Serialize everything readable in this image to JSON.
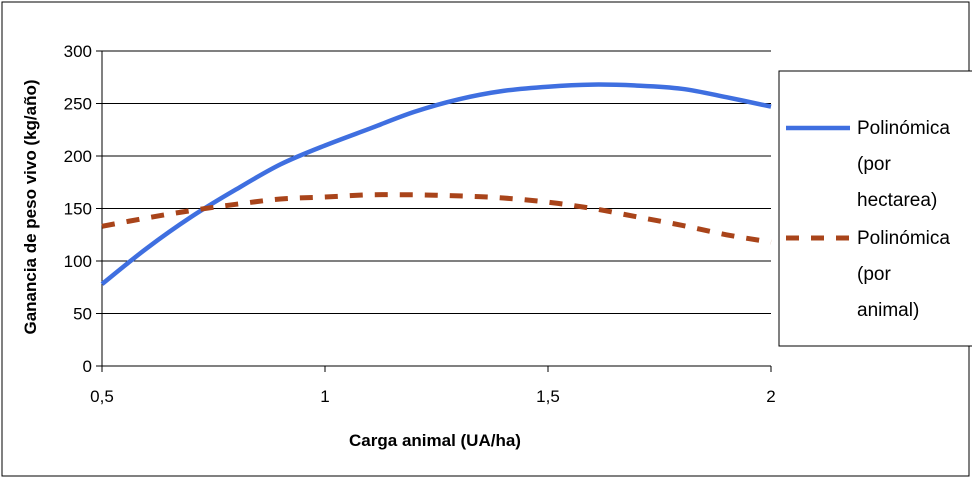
{
  "chart_data": {
    "type": "line",
    "xlabel": "Carga animal (UA/ha)",
    "ylabel": "Ganancia de peso vivo (kg/año)",
    "xlim": [
      0.5,
      2
    ],
    "ylim": [
      0,
      300
    ],
    "x_ticks": [
      "0,5",
      "1",
      "1,5",
      "2"
    ],
    "y_ticks": [
      "0",
      "50",
      "100",
      "150",
      "200",
      "250",
      "300"
    ],
    "grid": "horizontal",
    "legend_position": "right",
    "series": [
      {
        "name": "Polinómica (por hectarea)",
        "legend_lines": [
          "Polinómica",
          "(por",
          "hectarea)"
        ],
        "color": "#3f6fe0",
        "style": "solid",
        "x": [
          0.5,
          0.6,
          0.7,
          0.8,
          0.9,
          1.0,
          1.1,
          1.2,
          1.3,
          1.4,
          1.5,
          1.6,
          1.7,
          1.8,
          1.9,
          2.0
        ],
        "y": [
          78,
          112,
          142,
          168,
          192,
          210,
          226,
          242,
          254,
          262,
          266,
          268,
          267,
          264,
          256,
          247
        ]
      },
      {
        "name": "Polinómica (por animal)",
        "legend_lines": [
          "Polinómica",
          "(por",
          "animal)"
        ],
        "color": "#a9441a",
        "style": "dashed",
        "x": [
          0.5,
          0.6,
          0.7,
          0.8,
          0.9,
          1.0,
          1.1,
          1.2,
          1.3,
          1.4,
          1.5,
          1.6,
          1.7,
          1.8,
          1.9,
          2.0
        ],
        "y": [
          133,
          141,
          148,
          154,
          159,
          161,
          163,
          163,
          162,
          160,
          156,
          150,
          142,
          134,
          125,
          118
        ]
      }
    ]
  }
}
